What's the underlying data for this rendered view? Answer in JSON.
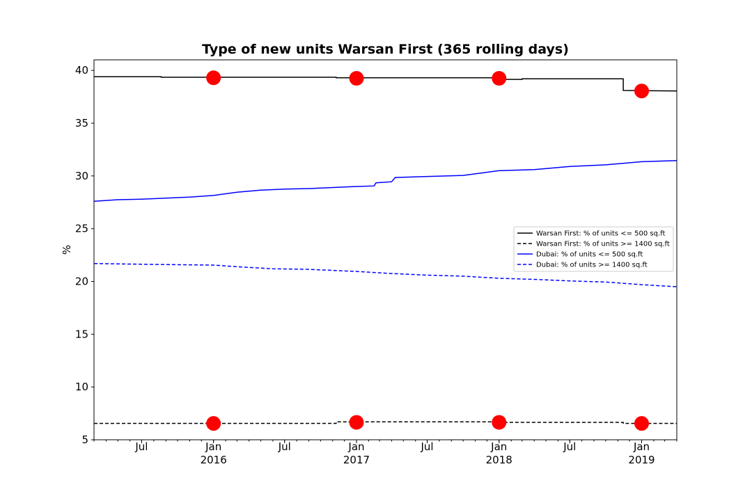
{
  "chart_data": {
    "type": "line",
    "title": "Type of new units Warsan First (365 rolling days)",
    "xlabel": "",
    "ylabel": "%",
    "x_range": [
      "2015-03-01",
      "2019-04-01"
    ],
    "ylim": [
      5,
      41
    ],
    "y_ticks": [
      5,
      10,
      15,
      20,
      25,
      30,
      35,
      40
    ],
    "x_ticks": [
      {
        "date": "2015-07-01",
        "label": "Jul",
        "sub": ""
      },
      {
        "date": "2016-01-01",
        "label": "Jan",
        "sub": "2016"
      },
      {
        "date": "2016-07-01",
        "label": "Jul",
        "sub": ""
      },
      {
        "date": "2017-01-01",
        "label": "Jan",
        "sub": "2017"
      },
      {
        "date": "2017-07-01",
        "label": "Jul",
        "sub": ""
      },
      {
        "date": "2018-01-01",
        "label": "Jan",
        "sub": "2018"
      },
      {
        "date": "2018-07-01",
        "label": "Jul",
        "sub": ""
      },
      {
        "date": "2019-01-01",
        "label": "Jan",
        "sub": "2019"
      }
    ],
    "legend_position": "center-right",
    "grid": false,
    "series": [
      {
        "name": "Warsan First: % of units <= 500 sq.ft",
        "color": "#000000",
        "dash": "solid",
        "points": [
          [
            "2015-03-01",
            39.4
          ],
          [
            "2015-08-20",
            39.4
          ],
          [
            "2015-08-20",
            39.35
          ],
          [
            "2016-11-10",
            39.35
          ],
          [
            "2016-11-10",
            39.3
          ],
          [
            "2017-12-20",
            39.3
          ],
          [
            "2017-12-20",
            39.15
          ],
          [
            "2018-03-01",
            39.15
          ],
          [
            "2018-03-01",
            39.2
          ],
          [
            "2018-11-15",
            39.2
          ],
          [
            "2018-11-15",
            38.1
          ],
          [
            "2019-04-01",
            38.05
          ]
        ]
      },
      {
        "name": "Warsan First: % of units >= 1400 sq.ft",
        "color": "#000000",
        "dash": "dashed",
        "points": [
          [
            "2015-03-01",
            6.55
          ],
          [
            "2016-11-10",
            6.55
          ],
          [
            "2016-11-10",
            6.7
          ],
          [
            "2017-12-20",
            6.7
          ],
          [
            "2017-12-20",
            6.65
          ],
          [
            "2018-11-15",
            6.65
          ],
          [
            "2018-11-15",
            6.55
          ],
          [
            "2019-04-01",
            6.55
          ]
        ]
      },
      {
        "name": "Dubai: % of units <= 500 sq.ft",
        "color": "#0000ff",
        "dash": "solid",
        "points": [
          [
            "2015-03-01",
            27.6
          ],
          [
            "2015-05-01",
            27.75
          ],
          [
            "2015-07-01",
            27.8
          ],
          [
            "2015-09-01",
            27.9
          ],
          [
            "2015-11-01",
            28.0
          ],
          [
            "2016-01-01",
            28.15
          ],
          [
            "2016-03-01",
            28.45
          ],
          [
            "2016-05-01",
            28.65
          ],
          [
            "2016-07-01",
            28.75
          ],
          [
            "2016-09-01",
            28.8
          ],
          [
            "2016-11-01",
            28.9
          ],
          [
            "2017-01-01",
            29.0
          ],
          [
            "2017-02-15",
            29.05
          ],
          [
            "2017-02-20",
            29.35
          ],
          [
            "2017-04-01",
            29.45
          ],
          [
            "2017-04-10",
            29.85
          ],
          [
            "2017-07-01",
            29.95
          ],
          [
            "2017-10-01",
            30.05
          ],
          [
            "2018-01-01",
            30.5
          ],
          [
            "2018-04-01",
            30.6
          ],
          [
            "2018-07-01",
            30.9
          ],
          [
            "2018-10-01",
            31.05
          ],
          [
            "2019-01-01",
            31.35
          ],
          [
            "2019-04-01",
            31.45
          ]
        ]
      },
      {
        "name": "Dubai: % of units >= 1400 sq.ft",
        "color": "#0000ff",
        "dash": "dashed",
        "points": [
          [
            "2015-03-01",
            21.7
          ],
          [
            "2015-06-01",
            21.65
          ],
          [
            "2015-09-01",
            21.6
          ],
          [
            "2016-01-01",
            21.55
          ],
          [
            "2016-03-01",
            21.4
          ],
          [
            "2016-06-01",
            21.2
          ],
          [
            "2016-09-01",
            21.15
          ],
          [
            "2017-01-01",
            20.95
          ],
          [
            "2017-04-01",
            20.75
          ],
          [
            "2017-07-01",
            20.6
          ],
          [
            "2017-10-01",
            20.5
          ],
          [
            "2018-01-01",
            20.3
          ],
          [
            "2018-04-01",
            20.2
          ],
          [
            "2018-07-01",
            20.05
          ],
          [
            "2018-10-01",
            19.95
          ],
          [
            "2019-01-01",
            19.7
          ],
          [
            "2019-04-01",
            19.5
          ]
        ]
      }
    ],
    "markers": {
      "color": "#ff0000",
      "points": [
        [
          "2016-01-01",
          39.3
        ],
        [
          "2017-01-01",
          39.25
        ],
        [
          "2018-01-01",
          39.25
        ],
        [
          "2019-01-01",
          38.05
        ],
        [
          "2016-01-01",
          6.55
        ],
        [
          "2017-01-01",
          6.65
        ],
        [
          "2018-01-01",
          6.65
        ],
        [
          "2019-01-01",
          6.55
        ]
      ]
    }
  }
}
